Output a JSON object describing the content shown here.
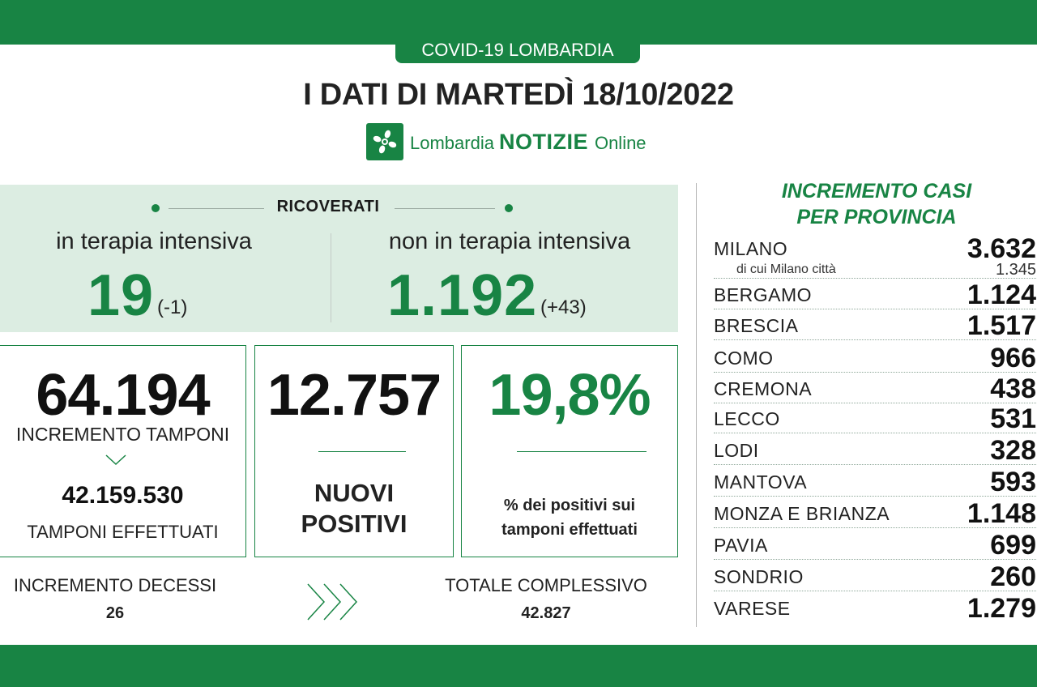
{
  "header": {
    "tag": "COVID-19 LOMBARDIA",
    "title": "I DATI DI MARTEDÌ 18/10/2022",
    "logo": {
      "prefix": "Lombardia",
      "bold": "NOTIZIE",
      "suffix": "Online"
    }
  },
  "ricoverati": {
    "title": "RICOVERATI",
    "intensiva": {
      "label": "in terapia intensiva",
      "value": "19",
      "delta": "(-1)"
    },
    "non_intensiva": {
      "label": "non in terapia intensiva",
      "value": "1.192",
      "delta": "(+43)"
    }
  },
  "tamponi": {
    "increment": "64.194",
    "increment_label": "INCREMENTO TAMPONI",
    "total": "42.159.530",
    "total_label": "TAMPONI EFFETTUATI"
  },
  "positivi": {
    "value": "12.757",
    "label_1": "NUOVI",
    "label_2": "POSITIVI"
  },
  "percentuale": {
    "value": "19,8%",
    "label_1": "% dei positivi sui",
    "label_2": "tamponi effettuati"
  },
  "decessi": {
    "label": "INCREMENTO DECESSI",
    "value": "26",
    "total_label": "TOTALE COMPLESSIVO",
    "total_value": "42.827"
  },
  "province": {
    "title_1": "INCREMENTO CASI",
    "title_2": "PER PROVINCIA",
    "milano": {
      "name": "MILANO",
      "value": "3.632",
      "city_label": "di cui Milano città",
      "city_value": "1.345"
    },
    "rows": [
      {
        "name": "BERGAMO",
        "value": "1.124"
      },
      {
        "name": "BRESCIA",
        "value": "1.517"
      },
      {
        "name": "COMO",
        "value": "966"
      },
      {
        "name": "CREMONA",
        "value": "438"
      },
      {
        "name": "LECCO",
        "value": "531"
      },
      {
        "name": "LODI",
        "value": "328"
      },
      {
        "name": "MANTOVA",
        "value": "593"
      },
      {
        "name": "MONZA E BRIANZA",
        "value": "1.148"
      },
      {
        "name": "PAVIA",
        "value": "699"
      },
      {
        "name": "SONDRIO",
        "value": "260"
      },
      {
        "name": "VARESE",
        "value": "1.279"
      }
    ]
  },
  "colors": {
    "green": "#188444",
    "light_green": "#dcede2"
  }
}
